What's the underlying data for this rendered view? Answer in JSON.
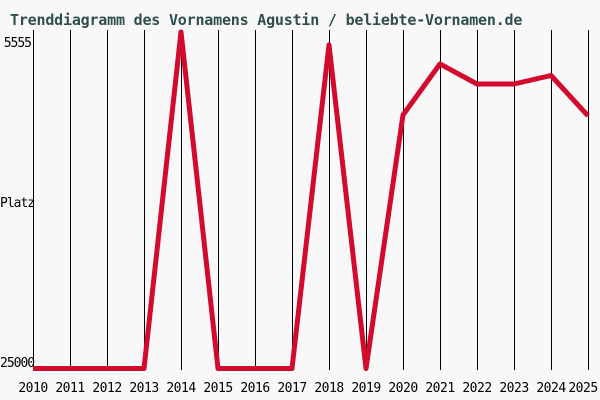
{
  "chart_data": {
    "type": "line",
    "title": "Trenddiagramm des Vornamens Agustin / beliebte-Vornamen.de",
    "ylabel": "Platz",
    "y_tick_top": "5555",
    "y_tick_bottom": "25000",
    "ylim": [
      25000,
      5555
    ],
    "y_axis_inverted": true,
    "categories": [
      "2010",
      "2011",
      "2012",
      "2013",
      "2014",
      "2015",
      "2016",
      "2017",
      "2018",
      "2019",
      "2020",
      "2021",
      "2022",
      "2023",
      "2024",
      "2025"
    ],
    "values": [
      25000,
      25000,
      25000,
      25000,
      5555,
      25000,
      25000,
      25000,
      6300,
      25000,
      10350,
      7400,
      8560,
      8560,
      8070,
      10400
    ],
    "grid": "vertical-only",
    "legend": "none"
  },
  "colors": {
    "line": "#D20A2D",
    "title_text": "#2F4F4F",
    "labels": "#000000",
    "grid": "#000000",
    "background": "#F8F8F8"
  }
}
